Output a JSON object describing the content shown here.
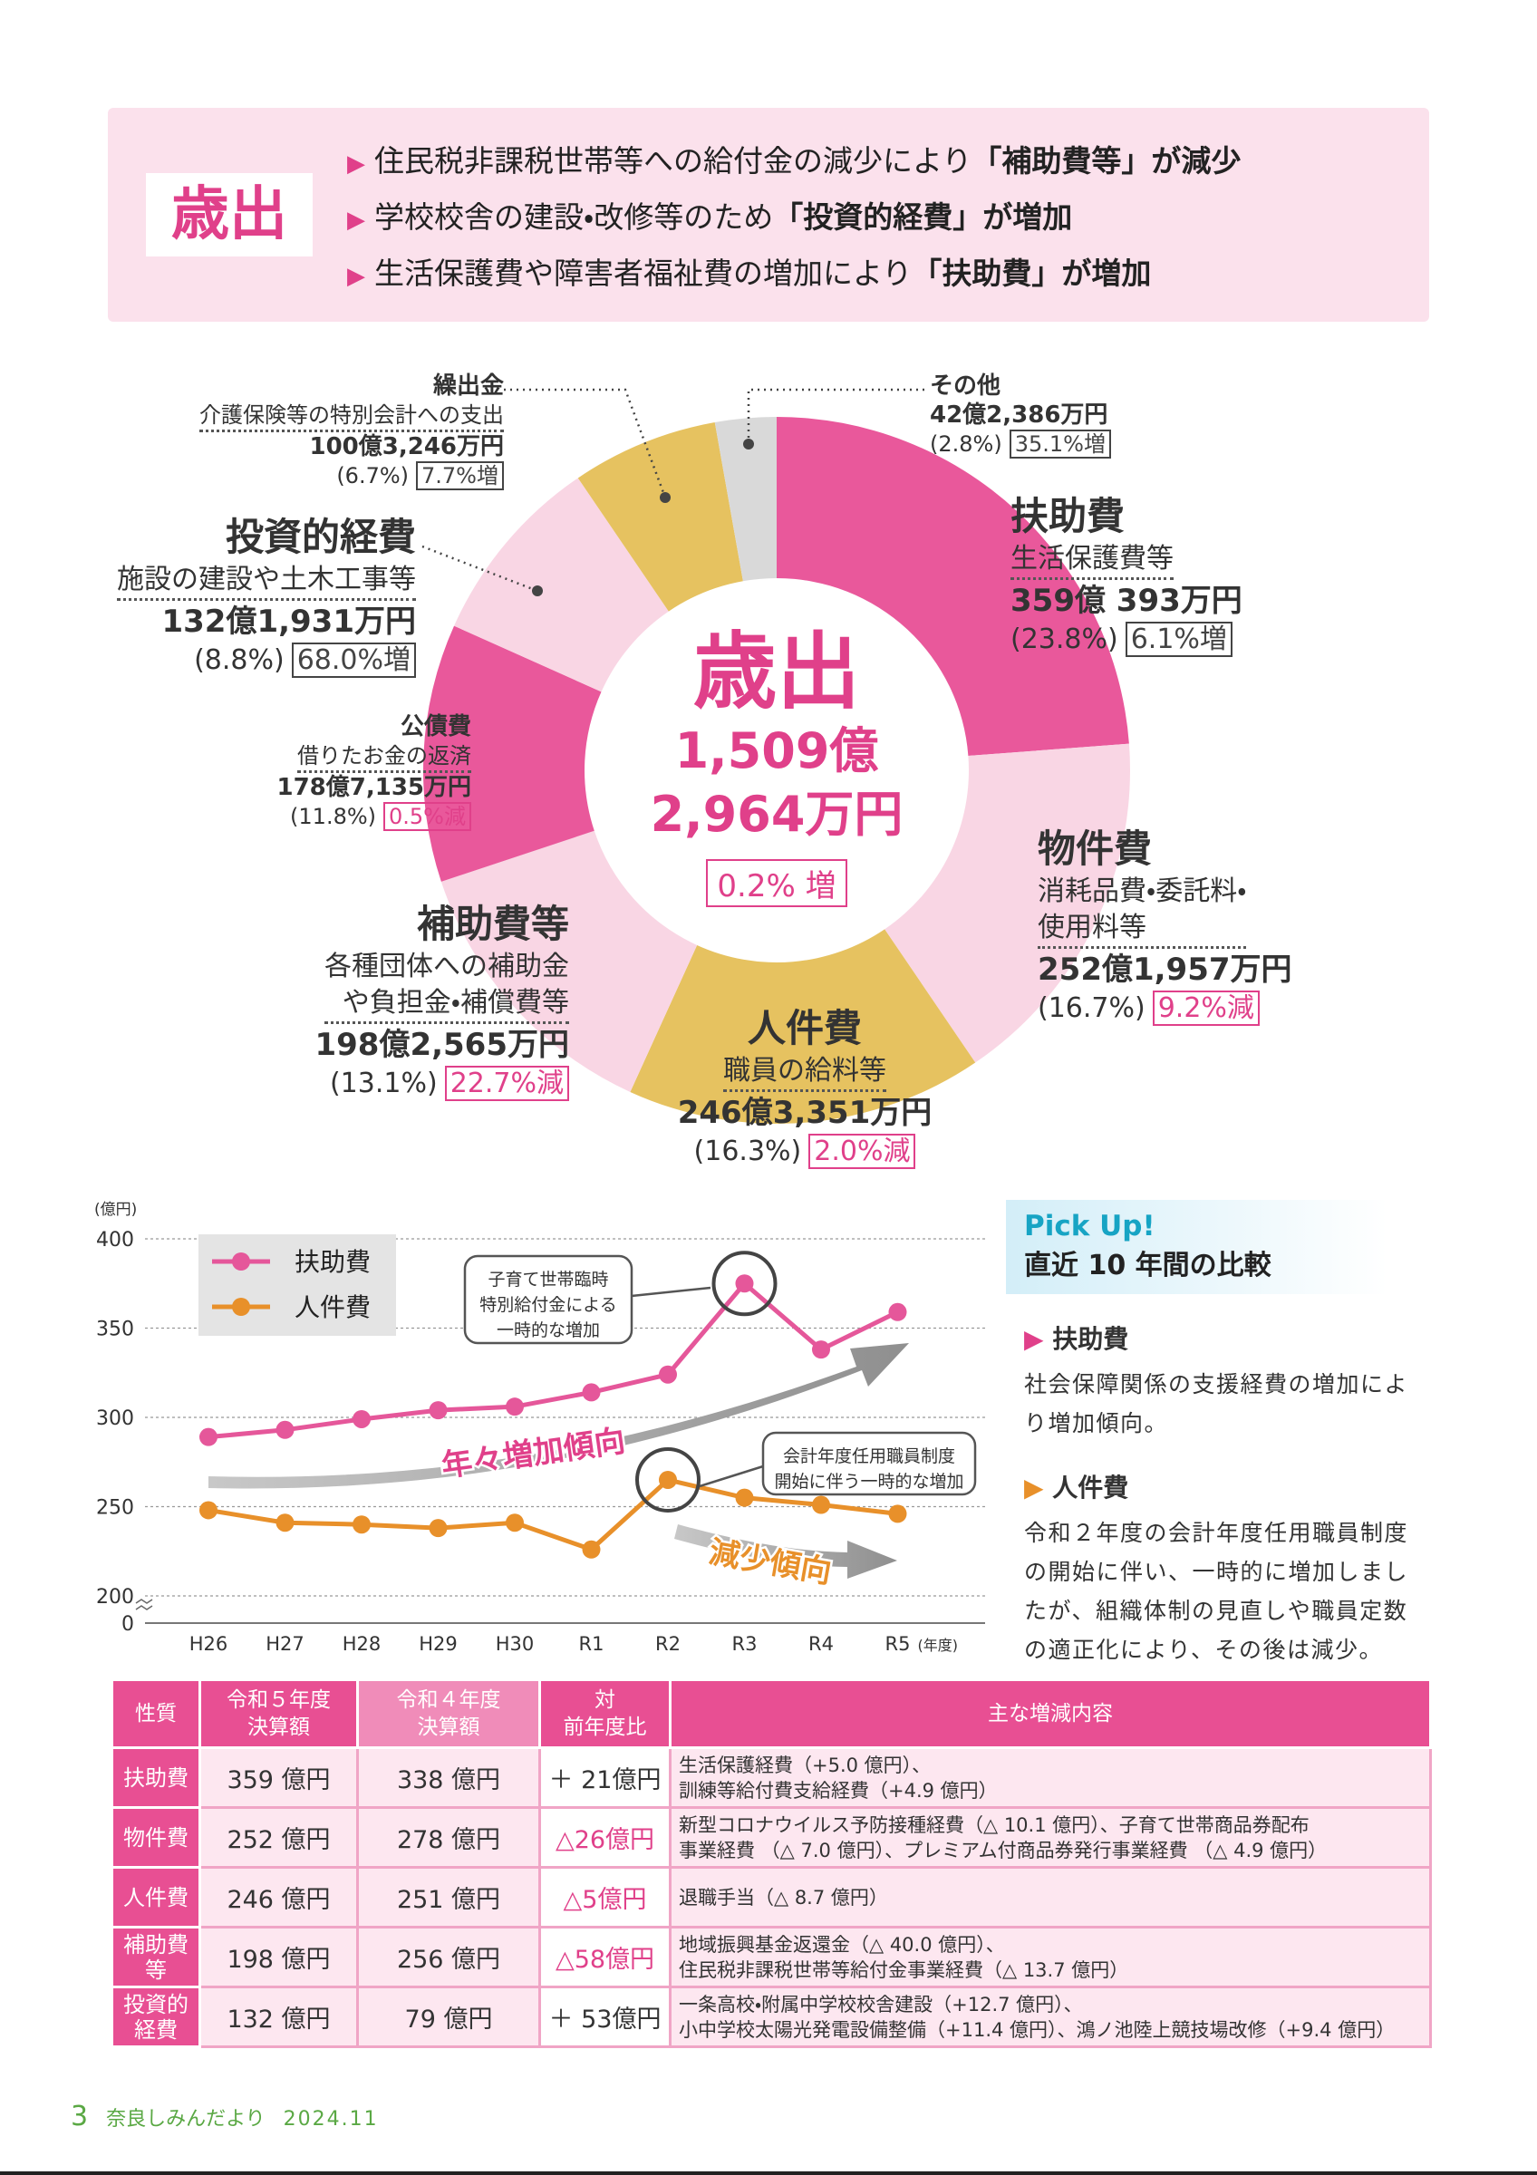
{
  "header": {
    "badge": "歳出",
    "points": [
      {
        "text": "住民税非課税世帯等への給付金の減少により",
        "emphasis": "「補助費等」が減少"
      },
      {
        "text": "学校校舎の建設・改修等のため",
        "emphasis": "「投資的経費」が増加"
      },
      {
        "text": "生活保護費や障害者福祉費の増加により",
        "emphasis": "「扶助費」が増加"
      }
    ]
  },
  "chart_data": [
    {
      "type": "pie",
      "donut": true,
      "center": {
        "title": "歳出",
        "amount_line1": "1,509億",
        "amount_line2": "2,964万円",
        "change": "0.2% 増"
      },
      "categories": [
        "扶助費",
        "物件費",
        "人件費",
        "補助費等",
        "公債費",
        "投資的経費",
        "繰出金",
        "その他"
      ],
      "descriptions": [
        "生活保護費等",
        "消耗品費・委託料・\n使用料等",
        "職員の給料等",
        "各種団体への補助金\nや負担金・補償費等",
        "借りたお金の返済",
        "施設の建設や土木工事等",
        "介護保険等の特別会計への支出",
        ""
      ],
      "amounts": [
        "359億 393万円",
        "252億1,957万円",
        "246億3,351万円",
        "198億2,565万円",
        "178億7,135万円",
        "132億1,931万円",
        "100億3,246万円",
        "42億2,386万円"
      ],
      "values": [
        23.8,
        16.7,
        16.3,
        13.1,
        11.8,
        8.8,
        6.7,
        2.8
      ],
      "value_labels": [
        "(23.8%)",
        "(16.7%)",
        "(16.3%)",
        "(13.1%)",
        "(11.8%)",
        "(8.8%)",
        "(6.7%)",
        "(2.8%)"
      ],
      "changes": [
        "6.1%増",
        "9.2%減",
        "2.0%減",
        "22.7%減",
        "0.5%減",
        "68.0%増",
        "7.7%増",
        "35.1%増"
      ],
      "change_colors": [
        "#444444",
        "#e0408a",
        "#e0408a",
        "#e0408a",
        "#e0408a",
        "#444444",
        "#444444",
        "#444444"
      ],
      "colors": [
        "#e9589b",
        "#f9d6e4",
        "#e6c260",
        "#f9d6e4",
        "#e9589b",
        "#f9d6e4",
        "#e6c260",
        "#d9d9d9"
      ]
    },
    {
      "type": "line",
      "categories": [
        "H26",
        "H27",
        "H28",
        "H29",
        "H30",
        "R1",
        "R2",
        "R3",
        "R4",
        "R5"
      ],
      "series": [
        {
          "name": "扶助費",
          "color": "#e5579a",
          "values": [
            289,
            293,
            299,
            304,
            306,
            314,
            324,
            375,
            338,
            359
          ]
        },
        {
          "name": "人件費",
          "color": "#e8902a",
          "values": [
            248,
            241,
            240,
            238,
            241,
            226,
            265,
            255,
            251,
            246
          ]
        }
      ],
      "ylim": [
        200,
        400
      ],
      "yticks": [
        200,
        250,
        300,
        350,
        400
      ],
      "y_break_label": "0",
      "y_axis_label": "(億円)",
      "x_axis_label": "(年度)",
      "grid": true,
      "annotations": [
        "子育て世帯臨時\n特別給付金による\n一時的な増加",
        "会計年度任用職員制度\n開始に伴う一時的な増加",
        "年々増加傾向",
        "減少傾向"
      ]
    }
  ],
  "pickup": {
    "tag": "Pick Up!",
    "title": "直近 10 年間の比較",
    "items": [
      {
        "heading": "扶助費",
        "text": "社会保障関係の支援経費の増加により増加傾向。"
      },
      {
        "heading": "人件費",
        "text": "令和２年度の会計年度任用職員制度の開始に伴い、一時的に増加しましたが、組織体制の見直しや職員定数の適正化により、その後は減少。"
      }
    ]
  },
  "table": {
    "header": [
      "性質",
      "令和５年度\n決算額",
      "令和４年度\n決算額",
      "対\n前年度比",
      "主な増減内容"
    ],
    "rows": [
      [
        "扶助費",
        "359 億円",
        "338 億円",
        "＋ 21億円",
        "生活保護経費（+5.0 億円）、\n訓練等給付費支給経費（+4.9 億円）"
      ],
      [
        "物件費",
        "252 億円",
        "278 億円",
        "△26億円",
        "新型コロナウイルス予防接種経費（△ 10.1 億円）、子育て世帯商品券配布\n事業経費 （△ 7.0 億円）、プレミアム付商品券発行事業経費 （△ 4.9 億円）"
      ],
      [
        "人件費",
        "246 億円",
        "251 億円",
        "△5億円",
        "退職手当（△ 8.7 億円）"
      ],
      [
        "補助費\n等",
        "198 億円",
        "256 億円",
        "△58億円",
        "地域振興基金返還金（△ 40.0 億円）、\n住民税非課税世帯等給付金事業経費（△ 13.7 億円）"
      ],
      [
        "投資的\n経費",
        "132 億円",
        "79 億円",
        "＋ 53億円",
        "一条高校・附属中学校校舎建設（+12.7 億円）、\n小中学校太陽光発電設備整備（+11.4 億円）、鴻ノ池陸上競技場改修（+9.4 億円）"
      ]
    ],
    "change_colors": [
      "#333333",
      "#e0408a",
      "#e0408a",
      "#e0408a",
      "#333333"
    ]
  },
  "footer": {
    "page": "3",
    "publication": "奈良しみんだより",
    "issue": "2024.11"
  }
}
